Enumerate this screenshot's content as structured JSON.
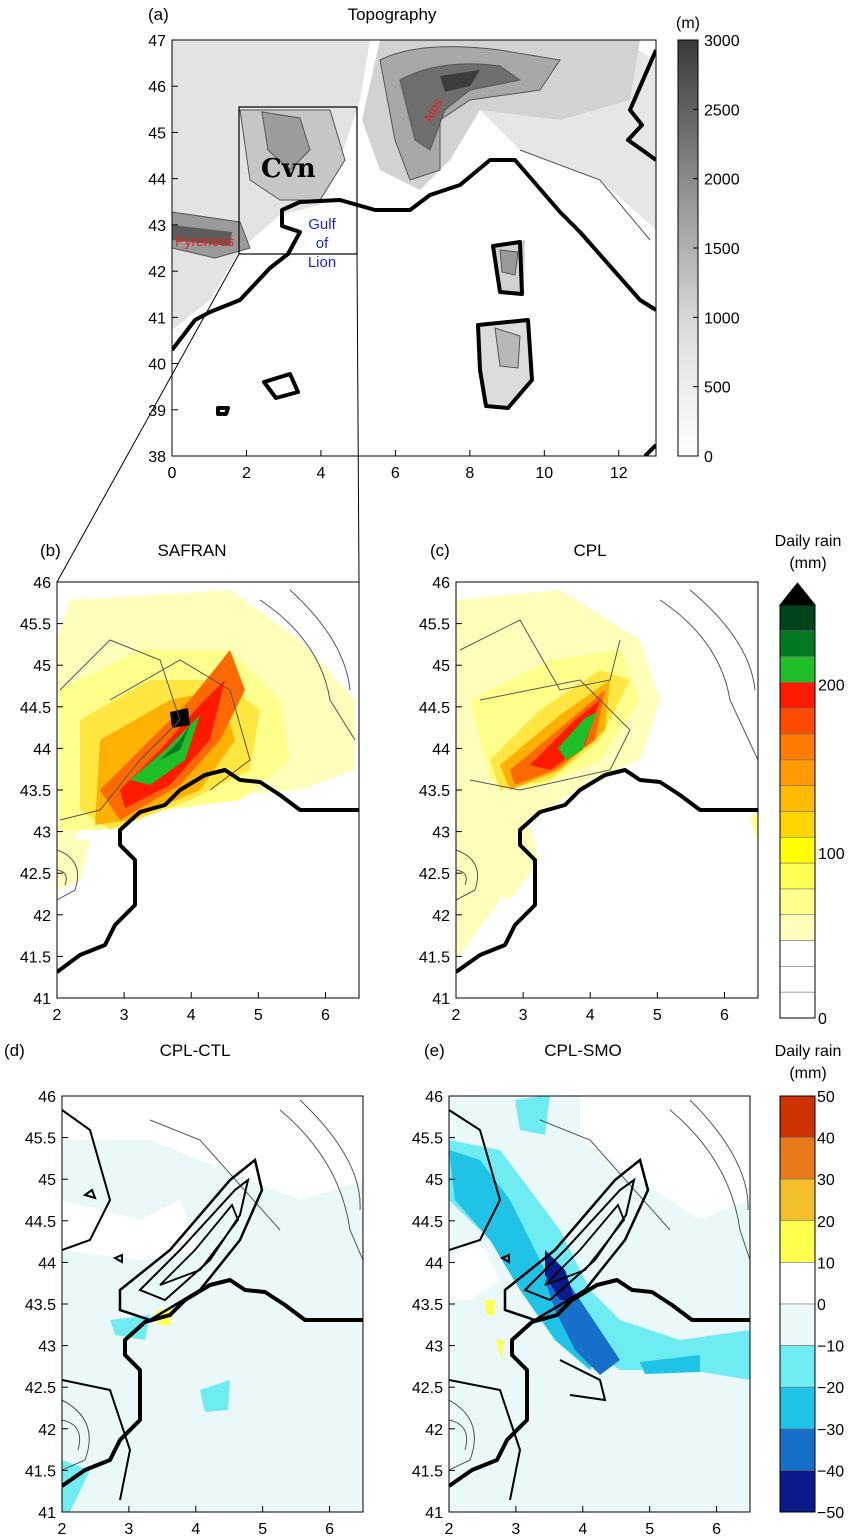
{
  "panels": {
    "a": {
      "label": "(a)",
      "title": "Topography",
      "x_ticks": [
        "0",
        "2",
        "4",
        "6",
        "8",
        "10",
        "12"
      ],
      "y_ticks": [
        "47",
        "46",
        "45",
        "44",
        "43",
        "42",
        "41",
        "40",
        "39",
        "38"
      ]
    },
    "b": {
      "label": "(b)",
      "title": "SAFRAN"
    },
    "c": {
      "label": "(c)",
      "title": "CPL"
    },
    "d": {
      "label": "(d)",
      "title": "CPL-CTL"
    },
    "e": {
      "label": "(e)",
      "title": "CPL-SMO"
    },
    "zoom_x_ticks": [
      "2",
      "3",
      "4",
      "5",
      "6"
    ],
    "zoom_y_ticks": [
      "46",
      "45.5",
      "45",
      "44.5",
      "44",
      "43.5",
      "43",
      "42.5",
      "42",
      "41.5",
      "41"
    ]
  },
  "annotations": {
    "cvn": "Cvn",
    "pyrenees": "Pyrenees",
    "alps": "Alps",
    "gulf_1": "Gulf",
    "gulf_2": "of",
    "gulf_3": "Lion"
  },
  "colorbars": {
    "topo": {
      "unit": "(m)",
      "labels": [
        "3000",
        "2500",
        "2000",
        "1500",
        "1000",
        "500",
        "0"
      ]
    },
    "rain": {
      "title_1": "Daily rain",
      "title_2": "(mm)",
      "labels": [
        "200",
        "100",
        "0"
      ]
    },
    "diff": {
      "title_1": "Daily rain",
      "title_2": "(mm)",
      "labels": [
        "50",
        "40",
        "30",
        "20",
        "10",
        "0",
        "−10",
        "−20",
        "−30",
        "−40",
        "−50"
      ]
    }
  },
  "colors": {
    "rain_scale": [
      "#000000",
      "#00441b",
      "#007a22",
      "#1fbf2a",
      "#ff1a00",
      "#ff4a00",
      "#ff7a00",
      "#ff9a00",
      "#ffbb00",
      "#ffd500",
      "#ffff00",
      "#ffff55",
      "#ffff8c",
      "#ffffbb",
      "#ffffff",
      "#ffffff",
      "#ffffff"
    ],
    "diff_scale": [
      "#cc3300",
      "#e87a1a",
      "#f2c12a",
      "#ffff4d",
      "#ffffff",
      "#eaf8fa",
      "#6fecf2",
      "#1ec3e6",
      "#1670c9",
      "#0a1a8a"
    ]
  },
  "chart_data": [
    {
      "type": "heatmap",
      "panel": "a",
      "title": "Topography",
      "variable": "elevation",
      "unit": "m",
      "xlim": [
        0,
        13
      ],
      "ylim": [
        38,
        47
      ],
      "clim": [
        0,
        3000
      ]
    },
    {
      "type": "heatmap",
      "panel": "b",
      "title": "SAFRAN",
      "variable": "daily rain",
      "unit": "mm",
      "xlim": [
        2,
        6.5
      ],
      "ylim": [
        41,
        46
      ],
      "clim": [
        0,
        200
      ],
      "max_location": [
        3.8,
        44.3
      ]
    },
    {
      "type": "heatmap",
      "panel": "c",
      "title": "CPL",
      "variable": "daily rain",
      "unit": "mm",
      "xlim": [
        2,
        6.5
      ],
      "ylim": [
        41,
        46
      ],
      "clim": [
        0,
        200
      ],
      "max_location": [
        3.7,
        44.0
      ]
    },
    {
      "type": "heatmap",
      "panel": "d",
      "title": "CPL-CTL",
      "variable": "daily rain difference",
      "unit": "mm",
      "xlim": [
        2,
        6.5
      ],
      "ylim": [
        41,
        46
      ],
      "clim": [
        -50,
        50
      ]
    },
    {
      "type": "heatmap",
      "panel": "e",
      "title": "CPL-SMO",
      "variable": "daily rain difference",
      "unit": "mm",
      "xlim": [
        2,
        6.5
      ],
      "ylim": [
        41,
        46
      ],
      "clim": [
        -50,
        50
      ],
      "min_location": [
        3.6,
        43.7
      ]
    }
  ]
}
